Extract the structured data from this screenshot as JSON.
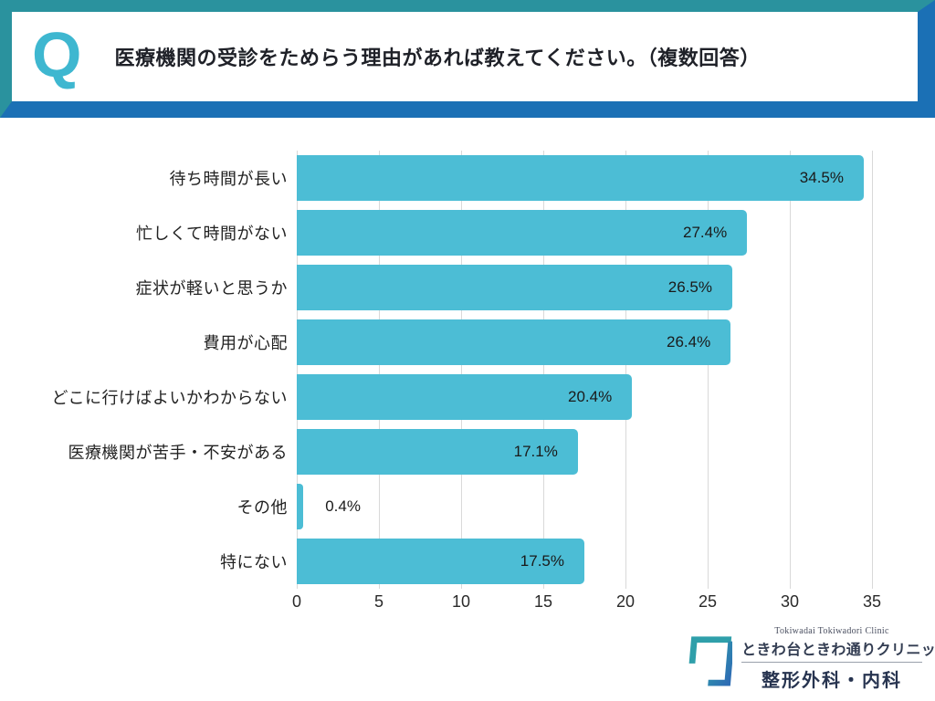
{
  "header": {
    "q_label": "Q",
    "title": "医療機関の受診をためらう理由があれば教えてください。（複数回答）"
  },
  "chart_data": {
    "type": "bar",
    "orientation": "horizontal",
    "title": "",
    "xlabel": "",
    "ylabel": "",
    "categories": [
      "待ち時間が長い",
      "忙しくて時間がない",
      "症状が軽いと思うか",
      "費用が心配",
      "どこに行けばよいかわからない",
      "医療機関が苦手・不安がある",
      "その他",
      "特にない"
    ],
    "values": [
      34.5,
      27.4,
      26.5,
      26.4,
      20.4,
      17.1,
      0.4,
      17.5
    ],
    "value_labels": [
      "34.5%",
      "27.4%",
      "26.5%",
      "26.4%",
      "20.4%",
      "17.1%",
      "0.4%",
      "17.5%"
    ],
    "x_ticks": [
      0,
      5,
      10,
      15,
      20,
      25,
      30,
      35
    ],
    "xlim": [
      0,
      35
    ],
    "grid": true,
    "legend": false,
    "bar_color": "#4cbdd5",
    "gridline_color": "#d9d9d9"
  },
  "footer_logo": {
    "clinic_en": "Tokiwadai Tokiwadori Clinic",
    "clinic_jp": "ときわ台ときわ通りクリニック",
    "departments": "整形外科・内科"
  },
  "colors": {
    "header_teal": "#2a929e",
    "header_blue": "#1b70b5",
    "q_letter": "#3eb7d0",
    "bar": "#4cbdd5"
  }
}
